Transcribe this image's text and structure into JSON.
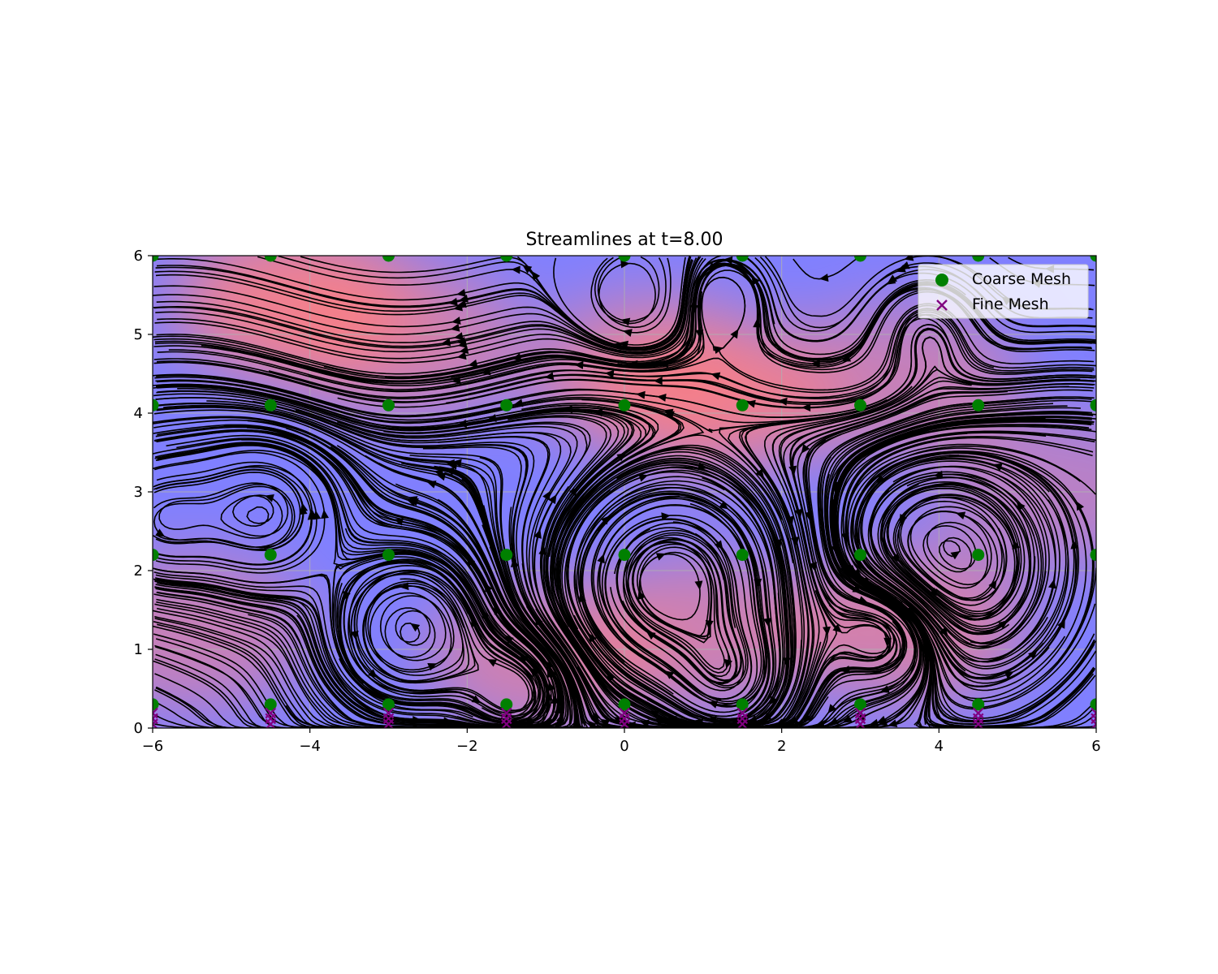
{
  "chart_data": {
    "type": "scatter",
    "title": "Streamlines at t=8.00",
    "xlabel": "",
    "ylabel": "",
    "xlim": [
      -6,
      6
    ],
    "ylim": [
      0,
      6
    ],
    "x_ticks": [
      -6,
      -4,
      -2,
      0,
      2,
      4,
      6
    ],
    "x_tick_labels": [
      "−6",
      "−4",
      "−2",
      "0",
      "2",
      "4",
      "6"
    ],
    "y_ticks": [
      0,
      1,
      2,
      3,
      4,
      5,
      6
    ],
    "y_tick_labels": [
      "0",
      "1",
      "2",
      "3",
      "4",
      "5",
      "6"
    ],
    "grid": true,
    "legend_position": "top-right",
    "background": {
      "type": "heatmap",
      "colormap": [
        "#8080ff",
        "#ff8080"
      ],
      "hotspots": [
        {
          "x": -4.2,
          "y": 5.4,
          "strength": 1.0
        },
        {
          "x": 1.2,
          "y": 4.2,
          "strength": 0.8
        },
        {
          "x": 0.3,
          "y": 4.5,
          "strength": 0.6
        },
        {
          "x": -2.8,
          "y": 4.9,
          "strength": 0.5
        },
        {
          "x": 3.6,
          "y": 1.3,
          "strength": 0.6
        },
        {
          "x": -1.0,
          "y": 0.9,
          "strength": 0.5
        },
        {
          "x": 1.0,
          "y": 1.2,
          "strength": 0.5
        },
        {
          "x": -5.5,
          "y": 1.2,
          "strength": 0.4
        },
        {
          "x": 3.5,
          "y": 4.4,
          "strength": 0.4
        },
        {
          "x": 5.5,
          "y": 3.0,
          "strength": 0.2
        }
      ]
    },
    "vortices": [
      {
        "x": -2.7,
        "y": 1.25,
        "r": 0.7,
        "dir": 1
      },
      {
        "x": 0.6,
        "y": 1.85,
        "r": 1.1,
        "dir": -1
      },
      {
        "x": 4.05,
        "y": 2.1,
        "r": 0.85,
        "dir": 1
      },
      {
        "x": 3.45,
        "y": 1.35,
        "r": 0.55,
        "dir": -1
      },
      {
        "x": -4.6,
        "y": 2.75,
        "r": 0.65,
        "dir": 1
      },
      {
        "x": -1.3,
        "y": 0.5,
        "r": 0.5,
        "dir": 1
      },
      {
        "x": 1.4,
        "y": 0.55,
        "r": 0.5,
        "dir": -1
      },
      {
        "x": 3.8,
        "y": 5.1,
        "r": 0.5,
        "dir": 1
      },
      {
        "x": 0.15,
        "y": 5.45,
        "r": 0.5,
        "dir": -1
      },
      {
        "x": 1.2,
        "y": 5.45,
        "r": 0.45,
        "dir": 1
      },
      {
        "x": -5.9,
        "y": 2.65,
        "r": 0.5,
        "dir": 1
      }
    ],
    "series": [
      {
        "name": "Coarse Mesh",
        "marker": "circle",
        "color": "#008000",
        "x": [
          -6,
          -4.5,
          -3,
          -1.5,
          0,
          1.5,
          3,
          4.5,
          6,
          -6,
          -4.5,
          -3,
          -1.5,
          0,
          1.5,
          3,
          4.5,
          6,
          -6,
          -4.5,
          -3,
          -1.5,
          0,
          1.5,
          3,
          4.5,
          6,
          -6,
          -4.5,
          -3,
          -1.5,
          0,
          1.5,
          3,
          4.5,
          6
        ],
        "y": [
          0.3,
          0.3,
          0.3,
          0.3,
          0.3,
          0.3,
          0.3,
          0.3,
          0.3,
          2.2,
          2.2,
          2.2,
          2.2,
          2.2,
          2.2,
          2.2,
          2.2,
          2.2,
          4.1,
          4.1,
          4.1,
          4.1,
          4.1,
          4.1,
          4.1,
          4.1,
          4.1,
          6.0,
          6.0,
          6.0,
          6.0,
          6.0,
          6.0,
          6.0,
          6.0,
          6.0
        ]
      },
      {
        "name": "Fine Mesh",
        "marker": "x",
        "color": "#800080",
        "x": [
          -6,
          -4.5,
          -3,
          -1.5,
          0,
          1.5,
          3,
          4.5,
          6,
          -6,
          -4.5,
          -3,
          -1.5,
          0,
          1.5,
          3,
          4.5,
          6,
          -6,
          -4.5,
          -3,
          -1.5,
          0,
          1.5,
          3,
          4.5,
          6
        ],
        "y": [
          0.05,
          0.05,
          0.05,
          0.05,
          0.05,
          0.05,
          0.05,
          0.05,
          0.05,
          0.12,
          0.12,
          0.12,
          0.12,
          0.12,
          0.12,
          0.12,
          0.12,
          0.12,
          0.19,
          0.19,
          0.19,
          0.19,
          0.19,
          0.19,
          0.19,
          0.19,
          0.19
        ]
      }
    ]
  }
}
